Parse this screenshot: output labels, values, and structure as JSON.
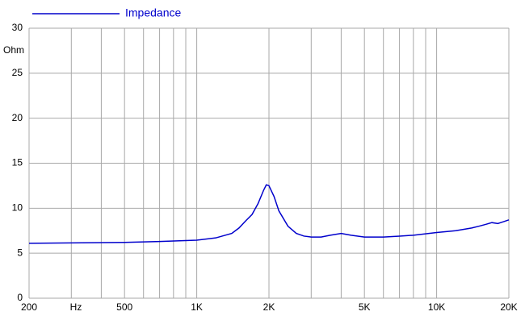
{
  "chart_data": {
    "type": "line",
    "x_label": "Hz",
    "y_label": "Ohm",
    "log_x": true,
    "grid": true,
    "legend": "top-left",
    "xlim": [
      200,
      20000
    ],
    "ylim": [
      0,
      30
    ],
    "xticks": [
      200,
      500,
      {
        "value": 1000,
        "label": "1K"
      },
      {
        "value": 2000,
        "label": "2K"
      },
      {
        "value": 5000,
        "label": "5K"
      },
      {
        "value": 10000,
        "label": "10K"
      },
      {
        "value": 20000,
        "label": "20K"
      }
    ],
    "xgrid": [
      300,
      400,
      600,
      700,
      800,
      900,
      3000,
      4000,
      6000,
      7000,
      8000,
      9000
    ],
    "yticks": [
      0,
      5,
      10,
      15,
      20,
      25,
      30
    ],
    "x": [
      200,
      300,
      500,
      700,
      1000,
      1200,
      1400,
      1500,
      1600,
      1700,
      1800,
      1900,
      1950,
      2000,
      2100,
      2200,
      2400,
      2600,
      2800,
      3000,
      3300,
      3600,
      4000,
      4400,
      5000,
      6000,
      7000,
      8000,
      10000,
      12000,
      14000,
      15000,
      16000,
      17000,
      18000,
      19000,
      20000
    ],
    "series": [
      {
        "name": "Impedance",
        "color": "#0000cc",
        "values": [
          6.1,
          6.15,
          6.2,
          6.3,
          6.45,
          6.7,
          7.2,
          7.8,
          8.6,
          9.3,
          10.5,
          12.0,
          12.6,
          12.5,
          11.3,
          9.7,
          8.0,
          7.2,
          6.9,
          6.8,
          6.8,
          7.0,
          7.2,
          7.0,
          6.8,
          6.8,
          6.9,
          7.0,
          7.3,
          7.5,
          7.8,
          8.0,
          8.2,
          8.4,
          8.3,
          8.5,
          8.7
        ]
      }
    ]
  }
}
